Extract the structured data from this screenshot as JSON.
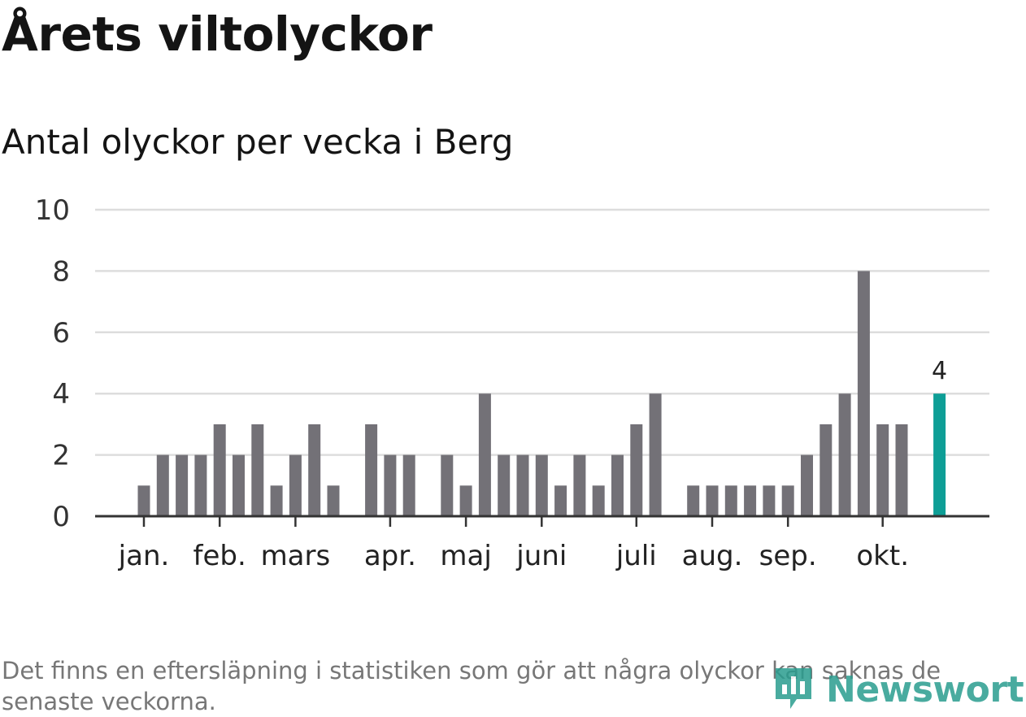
{
  "title": "Årets viltolyckor",
  "subtitle": "Antal olyckor per vecka i Berg",
  "footnote": "Det finns en eftersläpning i statistiken som gör att några olyckor kan saknas de senaste veckorna.",
  "brand": {
    "name": "Newsworthy",
    "icon": "newsworthy-logo-icon"
  },
  "colors": {
    "bar": "#737177",
    "highlight": "#0e9e96",
    "grid": "#dddddd",
    "axis": "#333333"
  },
  "chart_data": {
    "type": "bar",
    "title": "Årets viltolyckor",
    "subtitle": "Antal olyckor per vecka i Berg",
    "xlabel": "",
    "ylabel": "",
    "ylim": [
      0,
      10
    ],
    "yticks": [
      0,
      2,
      4,
      6,
      8,
      10
    ],
    "weeks": [
      1,
      2,
      3,
      4,
      5,
      6,
      7,
      8,
      9,
      10,
      11,
      12,
      13,
      14,
      15,
      16,
      17,
      18,
      19,
      20,
      21,
      22,
      23,
      24,
      25,
      26,
      27,
      28,
      29,
      30,
      31,
      32,
      33,
      34,
      35,
      36,
      37,
      38,
      39,
      40,
      41,
      42,
      43
    ],
    "values": [
      1,
      2,
      2,
      2,
      3,
      2,
      3,
      1,
      2,
      3,
      1,
      0,
      3,
      2,
      2,
      0,
      2,
      1,
      4,
      2,
      2,
      2,
      1,
      2,
      1,
      2,
      3,
      4,
      0,
      1,
      1,
      1,
      1,
      1,
      1,
      2,
      3,
      4,
      8,
      3,
      3,
      0,
      4
    ],
    "highlight_index": 42,
    "highlight_label": "4",
    "month_labels": [
      {
        "label": "jan.",
        "week": 1
      },
      {
        "label": "feb.",
        "week": 5
      },
      {
        "label": "mars",
        "week": 9
      },
      {
        "label": "apr.",
        "week": 14
      },
      {
        "label": "maj",
        "week": 18
      },
      {
        "label": "juni",
        "week": 22
      },
      {
        "label": "juli",
        "week": 27
      },
      {
        "label": "aug.",
        "week": 31
      },
      {
        "label": "sep.",
        "week": 35
      },
      {
        "label": "okt.",
        "week": 40
      }
    ]
  }
}
